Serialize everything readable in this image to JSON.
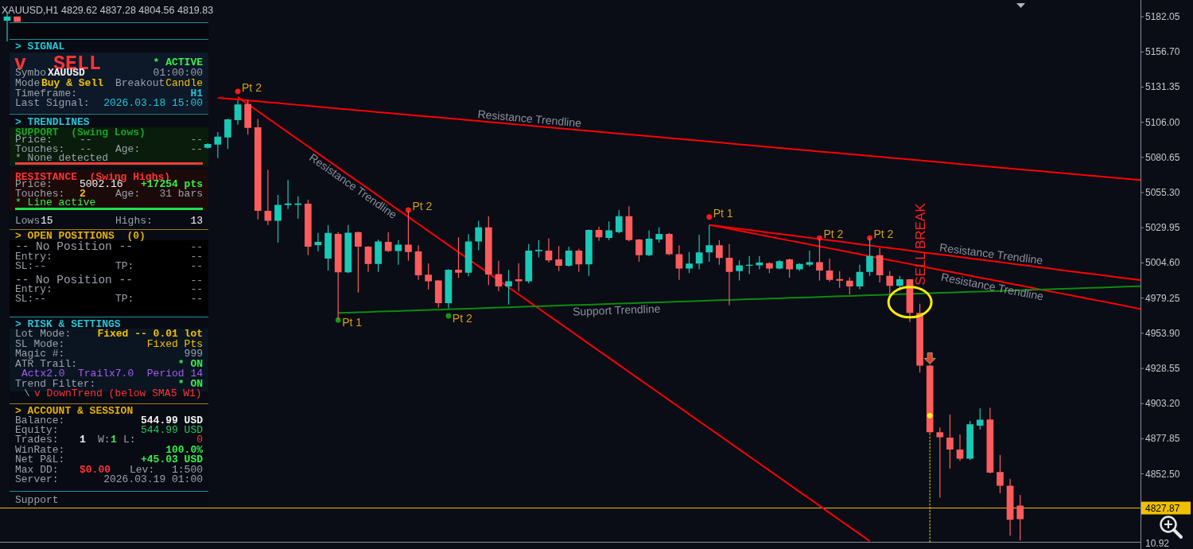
{
  "chart_data": [
    {
      "type": "candlestick",
      "title": "XAUUSD,H1 4829.62 4837.28 4804.56 4819.83",
      "categories": [
        null,
        null,
        null,
        null,
        null,
        null,
        null,
        null,
        null,
        null,
        null,
        null,
        null,
        null,
        null,
        null,
        null,
        null,
        null,
        null,
        null,
        null,
        null,
        null,
        null,
        null,
        null,
        null,
        null,
        null,
        null,
        null,
        null,
        null,
        null,
        null,
        null,
        null,
        null,
        null,
        null,
        null,
        null,
        null,
        null,
        null,
        null,
        null,
        null,
        null,
        null,
        null,
        null,
        null,
        null,
        null,
        null,
        null,
        null,
        null,
        null,
        null,
        null,
        null,
        null,
        null,
        null,
        null,
        null,
        null,
        null,
        null,
        null,
        null,
        null,
        null,
        null,
        null,
        null,
        null,
        null,
        null,
        null,
        null,
        null,
        null,
        null,
        null,
        null,
        null,
        null,
        null,
        null,
        null,
        null,
        null,
        null,
        null,
        null,
        null,
        null,
        null,
        null,
        null,
        null,
        null,
        null,
        null,
        null,
        null,
        null,
        null,
        null,
        null
      ],
      "ohlc": [
        [
          5179.2,
          5185.5,
          5164.3,
          5182.2
        ],
        [
          5182.2,
          5182.2,
          5178.4,
          5178.4
        ],
        null,
        null,
        null,
        null,
        null,
        null,
        null,
        null,
        null,
        null,
        null,
        null,
        null,
        null,
        null,
        null,
        null,
        null,
        [
          5087.6,
          5090.8,
          5087.0,
          5090.3
        ],
        [
          5089.9,
          5098.9,
          5080.3,
          5095.6
        ],
        [
          5095.1,
          5108.6,
          5086.7,
          5108.1
        ],
        [
          5107.5,
          5121.8,
          5104.2,
          5118.9
        ],
        [
          5119.2,
          5121.8,
          5097.0,
          5101.9
        ],
        [
          5102.3,
          5108.4,
          5036.0,
          5042.1
        ],
        [
          5042.1,
          5071.7,
          5032.0,
          5035.0
        ],
        [
          5035.0,
          5053.6,
          5019.2,
          5046.5
        ],
        [
          5046.3,
          5064.5,
          5043.4,
          5047.5
        ],
        [
          5046.5,
          5052.6,
          5036.4,
          5047.5
        ],
        [
          5047.3,
          5050.1,
          5010.2,
          5016.3
        ],
        [
          5017.3,
          5026.2,
          5012.9,
          5019.7
        ],
        [
          5007.7,
          5031.6,
          4999.1,
          5026.2
        ],
        [
          5025.5,
          5026.8,
          4963.7,
          4997.8
        ],
        [
          4997.8,
          5031.9,
          4997.2,
          5026.4
        ],
        [
          5026.8,
          5027.2,
          4983.2,
          5016.3
        ],
        [
          5016.3,
          5016.7,
          4998.1,
          5003.9
        ],
        [
          5003.9,
          5021.5,
          4998.1,
          5020.1
        ],
        [
          5019.7,
          5026.8,
          5012.5,
          5013.2
        ],
        [
          5013.2,
          5021.1,
          5003.3,
          5017.8
        ],
        [
          5017.8,
          5042.1,
          5006.2,
          5012.5
        ],
        [
          5012.9,
          5017.3,
          4992.4,
          4995.7
        ],
        [
          4996.1,
          5004.3,
          4985.3,
          4991.4
        ],
        [
          4992.0,
          4992.4,
          4972.3,
          4975.6
        ],
        [
          4975.6,
          5000.0,
          4971.8,
          4999.7
        ],
        [
          4999.7,
          5023.0,
          4993.7,
          4997.6
        ],
        [
          4997.6,
          5025.3,
          4994.9,
          5020.1
        ],
        [
          5020.1,
          5034.9,
          5013.8,
          5030.3
        ],
        [
          5030.3,
          5038.3,
          4988.6,
          4996.2
        ],
        [
          4996.6,
          5006.2,
          4984.2,
          4987.6
        ],
        [
          4987.6,
          4999.5,
          4974.6,
          4991.4
        ],
        [
          4992.8,
          5004.4,
          4984.2,
          4991.4
        ],
        [
          4991.4,
          5018.2,
          4989.9,
          5013.4
        ],
        [
          5013.0,
          5021.1,
          5008.6,
          5014.0
        ],
        [
          5013.4,
          5022.4,
          5004.9,
          5006.4
        ],
        [
          5007.1,
          5016.7,
          4998.7,
          5002.5
        ],
        [
          5002.5,
          5016.3,
          5001.9,
          5013.4
        ],
        [
          5013.4,
          5014.8,
          4998.1,
          5003.5
        ],
        [
          5003.5,
          5028.6,
          4995.3,
          5028.4
        ],
        [
          5028.4,
          5030.7,
          5020.5,
          5023.0
        ],
        [
          5022.6,
          5034.5,
          5021.1,
          5028.1
        ],
        [
          5026.8,
          5042.7,
          5025.9,
          5038.3
        ],
        [
          5038.3,
          5045.4,
          5020.1,
          5021.1
        ],
        [
          5021.5,
          5021.8,
          5005.4,
          5010.2
        ],
        [
          5010.2,
          5028.1,
          5009.4,
          5022.0
        ],
        [
          5021.5,
          5030.3,
          5019.2,
          5025.5
        ],
        [
          5025.5,
          5026.2,
          5010.2,
          5010.9
        ],
        [
          5010.9,
          5017.3,
          4992.4,
          5000.6
        ],
        [
          5000.6,
          5012.5,
          4997.2,
          5004.2
        ],
        [
          5004.2,
          5024.9,
          5000.0,
          5012.1
        ],
        [
          5012.1,
          5032.0,
          5005.4,
          5017.3
        ],
        [
          5017.3,
          5021.1,
          5003.3,
          5008.1
        ],
        [
          5008.3,
          5018.2,
          4974.2,
          4998.1
        ],
        [
          4998.7,
          5006.4,
          4992.0,
          5002.9
        ],
        [
          5002.5,
          5009.6,
          4996.6,
          5003.3
        ],
        [
          5002.9,
          5009.6,
          5000.0,
          5004.8
        ],
        [
          5004.4,
          5005.2,
          4997.2,
          5000.6
        ],
        [
          5000.6,
          5006.7,
          5000.0,
          5005.8
        ],
        [
          5007.1,
          5007.7,
          4993.9,
          5000.0
        ],
        [
          5000.0,
          5004.4,
          4998.7,
          5003.9
        ],
        [
          5003.3,
          5013.4,
          5002.0,
          5005.2
        ],
        [
          5005.2,
          5022.0,
          4991.8,
          4999.1
        ],
        [
          4999.1,
          5007.7,
          4991.1,
          4992.4
        ],
        [
          4993.0,
          4998.7,
          4986.7,
          4991.8
        ],
        [
          4991.8,
          4994.3,
          4981.9,
          4987.6
        ],
        [
          4987.6,
          5003.3,
          4985.7,
          4998.1
        ],
        [
          4998.1,
          5022.4,
          4995.3,
          5009.6
        ],
        [
          5010.2,
          5015.3,
          4990.5,
          4995.6
        ],
        [
          4995.3,
          4998.7,
          4981.9,
          4988.0
        ],
        [
          4988.0,
          4995.3,
          4985.7,
          4992.8
        ],
        [
          4992.8,
          4993.0,
          4962.0,
          4968.5
        ],
        [
          4968.5,
          4975.2,
          4925.5,
          4930.6
        ],
        [
          4930.6,
          4931.2,
          4882.0,
          4882.5
        ],
        [
          4882.5,
          4885.9,
          4835.3,
          4879.0
        ],
        [
          4878.6,
          4895.3,
          4856.3,
          4870.1
        ],
        [
          4870.1,
          4881.0,
          4861.8,
          4863.4
        ],
        [
          4863.4,
          4890.7,
          4862.4,
          4888.2
        ],
        [
          4887.3,
          4899.7,
          4884.4,
          4891.5
        ],
        [
          4891.7,
          4900.1,
          4852.8,
          4853.4
        ],
        [
          4853.8,
          4866.2,
          4838.5,
          4843.9
        ],
        [
          4843.9,
          4849.0,
          4807.9,
          4819.4
        ],
        [
          4829.62,
          4837.28,
          4804.56,
          4819.83
        ],
        null,
        null,
        null,
        null,
        null,
        null,
        null,
        null,
        null,
        null,
        null,
        null
      ],
      "colors": [
        "#19c9b5",
        "#fd5c5c",
        null,
        null,
        null,
        null,
        null,
        null,
        null,
        null,
        null,
        null,
        null,
        null,
        null,
        null,
        null,
        null,
        null,
        null,
        "#19c9b5",
        "#19c9b5",
        "#19c9b5",
        "#19c9b5",
        "#fd5c5c",
        "#fd5c5c",
        "#fd5c5c",
        "#19c9b5",
        "#19c9b5",
        "#19c9b5",
        "#fd5c5c",
        "#19c9b5",
        "#19c9b5",
        "#fd5c5c",
        "#19c9b5",
        "#fd5c5c",
        "#fd5c5c",
        "#19c9b5",
        "#fd5c5c",
        "#19c9b5",
        "#fd5c5c",
        "#fd5c5c",
        "#fd5c5c",
        "#fd5c5c",
        "#19c9b5",
        "#fd5c5c",
        "#19c9b5",
        "#19c9b5",
        "#fd5c5c",
        "#fd5c5c",
        "#19c9b5",
        "#fd5c5c",
        "#19c9b5",
        "#19c9b5",
        "#fd5c5c",
        "#fd5c5c",
        "#19c9b5",
        "#fd5c5c",
        "#19c9b5",
        "#fd5c5c",
        "#19c9b5",
        "#19c9b5",
        "#fd5c5c",
        "#fd5c5c",
        "#19c9b5",
        "#19c9b5",
        "#fd5c5c",
        "#fd5c5c",
        "#19c9b5",
        "#19c9b5",
        "#19c9b5",
        "#fd5c5c",
        "#fd5c5c",
        "#19c9b5",
        "#19c9b5",
        "#19c9b5",
        "#fd5c5c",
        "#19c9b5",
        "#fd5c5c",
        "#19c9b5",
        "#19c9b5",
        "#fd5c5c",
        "#fd5c5c",
        "#fd5c5c",
        "#fd5c5c",
        "#19c9b5",
        "#19c9b5",
        "#fd5c5c",
        "#fd5c5c",
        "#19c9b5",
        "#fd5c5c",
        "#fd5c5c",
        "#fd5c5c",
        "#fd5c5c",
        "#fd5c5c",
        "#fd5c5c",
        "#19c9b5",
        "#19c9b5",
        "#fd5c5c",
        "#fd5c5c",
        "#fd5c5c",
        "#fd5c5c",
        null,
        null,
        null,
        null,
        null,
        null,
        null,
        null,
        null,
        null,
        null,
        null
      ],
      "ylim": [
        4803.5,
        5193.0
      ],
      "yticks": [
        5182.05,
        {
          "value": 5156.7,
          "label": "5156.70"
        },
        5131.35,
        {
          "value": 5106,
          "label": "5106.00"
        },
        5080.65,
        {
          "value": 5055.3,
          "label": "5055.30"
        },
        5029.95,
        {
          "value": 5004.6,
          "label": "5004.60"
        },
        4979.25,
        {
          "value": 4953.9,
          "label": "4953.90"
        },
        4928.55,
        {
          "value": 4903.2,
          "label": "4903.20"
        },
        4877.85,
        {
          "value": 4852.5,
          "label": "4852.50"
        }
      ],
      "ref_lines": [
        {
          "axis": "y",
          "value": 4827.87,
          "label": "4827.87",
          "color": "#f0c000"
        }
      ],
      "series": [
        {
          "type": "line",
          "name": "Resistance Trendline",
          "color": "#ff0000",
          "values": [
            null,
            null,
            null,
            null,
            null,
            null,
            null,
            null,
            null,
            null,
            null,
            null,
            null,
            null,
            null,
            null,
            null,
            null,
            null,
            null,
            null,
            5123.6,
            5123.0,
            5122.4,
            5121.7,
            5121.1,
            5120.4,
            5119.8,
            5119.1,
            5118.5,
            5117.8,
            5117.2,
            5116.6,
            5115.9,
            5115.3,
            5114.6,
            5114.0,
            5113.3,
            5112.7,
            5112.0,
            5111.4,
            5110.7,
            5110.1,
            5109.5,
            5108.8,
            5108.2,
            5107.5,
            5106.9,
            5106.2,
            5105.6,
            5104.9,
            5104.3,
            5103.7,
            5103.0,
            5102.4,
            5101.7,
            5101.1,
            5100.4,
            5099.8,
            5099.1,
            5098.5,
            5097.8,
            5097.2,
            5096.6,
            5095.9,
            5095.3,
            5094.6,
            5094.0,
            5093.3,
            5092.7,
            5092.0,
            5091.4,
            5090.8,
            5090.1,
            5089.5,
            5088.8,
            5088.2,
            5087.5,
            5086.9,
            5086.2,
            5085.6,
            5084.9,
            5084.3,
            5083.7,
            5083.0,
            5082.4,
            5081.7,
            5081.1,
            5080.4,
            5079.8,
            5079.1,
            5078.5,
            5077.9,
            5077.2,
            5076.6,
            5075.9,
            5075.3,
            5074.6,
            5074.0,
            5073.3,
            5072.7,
            5072.0,
            5071.4,
            5070.8,
            5070.1,
            5069.5,
            5068.8,
            5068.2,
            5067.5,
            5066.9,
            5066.2,
            5065.6,
            5065.0,
            5064.3
          ]
        },
        {
          "type": "line",
          "name": "Resistance Trendline",
          "color": "#ff0000",
          "values": [
            null,
            null,
            null,
            null,
            null,
            null,
            null,
            null,
            null,
            null,
            null,
            null,
            null,
            null,
            null,
            null,
            null,
            null,
            null,
            null,
            null,
            null,
            null,
            5124.1,
            null,
            5114.0,
            5108.9,
            5103.8,
            5098.7,
            5093.6,
            5088.6,
            5083.5,
            5078.4,
            5073.3,
            5068.2,
            5063.2,
            5058.1,
            5053.0,
            5047.9,
            5042.8,
            5037.8,
            5032.7,
            5027.6,
            5022.5,
            5017.4,
            5012.4,
            null,
            5002.2,
            null,
            null,
            4987.0,
            4981.9,
            4976.8,
            4971.7,
            4966.6,
            4961.6,
            4956.5,
            4951.4,
            4946.3,
            4941.2,
            4936.2,
            4931.1,
            4926.0,
            4920.9,
            4915.8,
            4910.8,
            4905.7,
            4900.6,
            4895.5,
            4890.4,
            4885.4,
            4880.3,
            4875.2,
            4870.1,
            4865.0,
            4860.0,
            4854.9,
            4849.8,
            4844.7,
            4839.6,
            4834.6,
            4829.5,
            4824.4,
            4819.3,
            4814.2,
            4809.2,
            4804.1,
            null,
            null,
            null,
            null,
            null,
            null,
            null,
            null,
            null,
            null,
            null,
            null,
            null,
            null,
            null,
            null,
            null,
            null,
            null,
            null,
            null,
            null,
            null,
            null,
            null,
            null,
            null
          ]
        },
        {
          "type": "line",
          "name": "Resistance Trendline",
          "color": "#ff0000",
          "values": [
            null,
            null,
            null,
            null,
            null,
            null,
            null,
            null,
            null,
            null,
            null,
            null,
            null,
            null,
            null,
            null,
            null,
            null,
            null,
            null,
            null,
            null,
            null,
            null,
            null,
            null,
            null,
            null,
            null,
            null,
            null,
            null,
            null,
            null,
            null,
            null,
            null,
            null,
            null,
            null,
            null,
            null,
            null,
            null,
            null,
            null,
            null,
            null,
            null,
            null,
            null,
            null,
            null,
            null,
            null,
            null,
            null,
            null,
            null,
            null,
            null,
            null,
            null,
            null,
            null,
            null,
            null,
            null,
            null,
            null,
            5032.0,
            5031.1,
            5030.1,
            5029.2,
            5028.3,
            5027.4,
            5026.4,
            5025.5,
            5024.6,
            5023.7,
            5022.7,
            5021.8,
            5020.9,
            5020.0,
            5019.0,
            5018.1,
            5017.2,
            5016.2,
            5015.3,
            5014.4,
            5013.5,
            5012.5,
            5011.6,
            5010.7,
            5009.8,
            5008.8,
            5007.9,
            5007.0,
            5006.1,
            5005.1,
            5004.2,
            5003.3,
            5002.4,
            5001.4,
            5000.5,
            4999.6,
            4998.6,
            4997.7,
            4996.8,
            4995.9,
            4994.9,
            4994.0,
            4993.1,
            4992.2
          ]
        },
        {
          "type": "line",
          "name": "Resistance Trendline",
          "color": "#ff0000",
          "values": [
            null,
            null,
            null,
            null,
            null,
            null,
            null,
            null,
            null,
            null,
            null,
            null,
            null,
            null,
            null,
            null,
            null,
            null,
            null,
            null,
            null,
            null,
            null,
            null,
            null,
            null,
            null,
            null,
            null,
            null,
            null,
            null,
            null,
            null,
            null,
            null,
            null,
            null,
            null,
            null,
            null,
            null,
            null,
            null,
            null,
            null,
            null,
            null,
            null,
            null,
            null,
            null,
            null,
            null,
            null,
            null,
            null,
            null,
            null,
            null,
            null,
            null,
            null,
            null,
            null,
            null,
            null,
            null,
            null,
            null,
            5032.0,
            5030.6,
            5029.2,
            5027.8,
            5026.4,
            5025.0,
            5023.5,
            5022.1,
            5020.7,
            5019.3,
            5017.9,
            5016.5,
            5015.1,
            5013.7,
            5012.3,
            5010.9,
            null,
            null,
            5006.6,
            5005.2,
            5003.8,
            5002.4,
            5001.0,
            4999.6,
            4998.2,
            4996.8,
            4995.4,
            4994.0,
            4992.6,
            4991.2,
            4989.7,
            4988.3,
            4986.9,
            4985.5,
            4984.1,
            4982.7,
            4981.3,
            4979.9,
            4978.5,
            4977.1,
            4975.7,
            4974.3,
            4972.8,
            4971.4
          ]
        },
        {
          "type": "line",
          "name": "Support Trendline",
          "color": "#0c8c0c",
          "values": [
            null,
            null,
            null,
            null,
            null,
            null,
            null,
            null,
            null,
            null,
            null,
            null,
            null,
            null,
            null,
            null,
            null,
            null,
            null,
            null,
            null,
            null,
            null,
            null,
            null,
            null,
            null,
            null,
            null,
            null,
            null,
            null,
            null,
            4968.5,
            4968.7,
            4969.0,
            4969.2,
            4969.5,
            4969.7,
            4969.9,
            4970.2,
            4970.4,
            4970.7,
            4970.9,
            4971.2,
            4971.4,
            4971.6,
            4971.9,
            4972.1,
            4972.4,
            4972.6,
            4972.8,
            4973.1,
            4973.3,
            4973.6,
            4973.8,
            4974.1,
            4974.3,
            4974.5,
            4974.8,
            4975.0,
            4975.3,
            4975.5,
            4975.7,
            4976.0,
            4976.2,
            4976.5,
            4976.7,
            4976.9,
            4977.2,
            4977.4,
            4977.7,
            4977.9,
            4978.2,
            4978.4,
            4978.6,
            4978.9,
            4979.1,
            4979.4,
            4979.6,
            4979.8,
            4980.1,
            4980.3,
            4980.6,
            4980.8,
            4981.1,
            4981.3,
            4981.5,
            4981.8,
            4982.0,
            null,
            4982.5,
            4982.7,
            4983.0,
            4983.2,
            4983.5,
            4983.7,
            4983.9,
            4984.2,
            4984.4,
            4984.7,
            4984.9,
            4985.2,
            4985.4,
            4985.6,
            4985.9,
            4986.1,
            4986.4,
            4986.6,
            4986.8,
            4987.1,
            4987.3,
            4987.6,
            4987.8
          ]
        },
        {
          "type": "scatter",
          "color": "#ff1a1a",
          "marker": "circle",
          "values": [
            null,
            null,
            null,
            null,
            null,
            null,
            null,
            null,
            null,
            null,
            null,
            null,
            null,
            null,
            null,
            null,
            null,
            null,
            null,
            null,
            null,
            null,
            null,
            5128.2,
            null,
            null,
            null,
            null,
            null,
            null,
            null,
            null,
            null,
            null,
            null,
            null,
            null,
            null,
            null,
            null,
            5042.7,
            null,
            null,
            null,
            null,
            null,
            null,
            null,
            null,
            null,
            null,
            null,
            null,
            null,
            null,
            null,
            null,
            null,
            null,
            null,
            null,
            null,
            null,
            null,
            null,
            null,
            null,
            null,
            null,
            null,
            5037.7,
            null,
            null,
            null,
            null,
            null,
            null,
            null,
            null,
            null,
            null,
            5022.6,
            null,
            null,
            null,
            null,
            5022.6,
            null,
            null,
            null,
            null,
            null,
            null,
            null,
            null,
            null,
            null,
            null,
            null,
            null,
            null,
            null,
            null,
            null,
            null,
            null,
            null,
            null,
            null,
            null,
            null,
            null,
            null,
            null
          ],
          "value_labels": [
            null,
            null,
            null,
            null,
            null,
            null,
            null,
            null,
            null,
            null,
            null,
            null,
            null,
            null,
            null,
            null,
            null,
            null,
            null,
            null,
            null,
            null,
            null,
            "Pt 2",
            null,
            null,
            null,
            null,
            null,
            null,
            null,
            null,
            null,
            null,
            null,
            null,
            null,
            null,
            null,
            null,
            "Pt 2",
            null,
            null,
            null,
            null,
            null,
            null,
            null,
            null,
            null,
            null,
            null,
            null,
            null,
            null,
            null,
            null,
            null,
            null,
            null,
            null,
            null,
            null,
            null,
            null,
            null,
            null,
            null,
            null,
            null,
            "Pt 1",
            null,
            null,
            null,
            null,
            null,
            null,
            null,
            null,
            null,
            null,
            "Pt 2",
            null,
            null,
            null,
            null,
            "Pt 2",
            null,
            null,
            null,
            null,
            null,
            null,
            null,
            null,
            null,
            null,
            null,
            null,
            null,
            null,
            null,
            null,
            null,
            null,
            null,
            null,
            null,
            null,
            null,
            null,
            null,
            null,
            null
          ]
        },
        {
          "type": "scatter",
          "color": "#0a9a0a",
          "marker": "circle",
          "values": [
            null,
            null,
            null,
            null,
            null,
            null,
            null,
            null,
            null,
            null,
            null,
            null,
            null,
            null,
            null,
            null,
            null,
            null,
            null,
            null,
            null,
            null,
            null,
            null,
            null,
            null,
            null,
            null,
            null,
            null,
            null,
            null,
            null,
            4963.4,
            null,
            null,
            null,
            null,
            null,
            null,
            null,
            null,
            null,
            null,
            4966.4,
            null,
            null,
            null,
            null,
            null,
            null,
            null,
            null,
            null,
            null,
            null,
            null,
            null,
            null,
            null,
            null,
            null,
            null,
            null,
            null,
            null,
            null,
            null,
            null,
            null,
            null,
            null,
            null,
            null,
            null,
            null,
            null,
            null,
            null,
            null,
            null,
            null,
            null,
            null,
            null,
            null,
            null,
            null,
            null,
            null,
            null,
            null,
            null,
            null,
            null,
            null,
            null,
            null,
            null,
            null,
            null,
            null,
            null,
            null,
            null,
            null,
            null,
            null,
            null,
            null,
            null,
            null,
            null,
            null
          ],
          "value_labels": [
            null,
            null,
            null,
            null,
            null,
            null,
            null,
            null,
            null,
            null,
            null,
            null,
            null,
            null,
            null,
            null,
            null,
            null,
            null,
            null,
            null,
            null,
            null,
            null,
            null,
            null,
            null,
            null,
            null,
            null,
            null,
            null,
            null,
            "Pt 1",
            null,
            null,
            null,
            null,
            null,
            null,
            null,
            null,
            null,
            null,
            "Pt 2",
            null,
            null,
            null,
            null,
            null,
            null,
            null,
            null,
            null,
            null,
            null,
            null,
            null,
            null,
            null,
            null,
            null,
            null,
            null,
            null,
            null,
            null,
            null,
            null,
            null,
            null,
            null,
            null,
            null,
            null,
            null,
            null,
            null,
            null,
            null,
            null,
            null,
            null,
            null,
            null,
            null,
            null,
            null,
            null,
            null,
            null,
            null,
            null,
            null,
            null,
            null,
            null,
            null,
            null,
            null,
            null,
            null,
            null,
            null,
            null,
            null,
            null,
            null,
            null,
            null,
            null,
            null,
            null,
            null
          ]
        },
        {
          "type": "scatter",
          "color": "#ffff00",
          "marker": "circle",
          "line_style": "dotted",
          "values": [
            null,
            null,
            null,
            null,
            null,
            null,
            null,
            null,
            null,
            null,
            null,
            null,
            null,
            null,
            null,
            null,
            null,
            null,
            null,
            null,
            null,
            null,
            null,
            null,
            null,
            null,
            null,
            null,
            null,
            null,
            null,
            null,
            null,
            null,
            null,
            null,
            null,
            null,
            null,
            null,
            null,
            null,
            null,
            null,
            null,
            null,
            null,
            null,
            null,
            null,
            null,
            null,
            null,
            null,
            null,
            null,
            null,
            null,
            null,
            null,
            null,
            null,
            null,
            null,
            null,
            null,
            null,
            null,
            null,
            null,
            null,
            null,
            null,
            null,
            null,
            null,
            null,
            null,
            null,
            null,
            null,
            null,
            null,
            null,
            null,
            null,
            null,
            null,
            null,
            null,
            null,
            null,
            4894.5,
            null,
            null,
            null,
            null,
            null,
            null,
            null,
            null,
            null,
            null,
            null,
            null,
            null,
            null,
            null,
            null,
            null,
            null,
            null,
            null,
            null
          ],
          "errors": [
            null,
            null,
            null,
            null,
            null,
            null,
            null,
            null,
            null,
            null,
            null,
            null,
            null,
            null,
            null,
            null,
            null,
            null,
            null,
            null,
            null,
            null,
            null,
            null,
            null,
            null,
            null,
            null,
            null,
            null,
            null,
            null,
            null,
            null,
            null,
            null,
            null,
            null,
            null,
            null,
            null,
            null,
            null,
            null,
            null,
            null,
            null,
            null,
            null,
            null,
            null,
            null,
            null,
            null,
            null,
            null,
            null,
            null,
            null,
            null,
            null,
            null,
            null,
            null,
            null,
            null,
            null,
            null,
            null,
            null,
            null,
            null,
            null,
            null,
            null,
            null,
            null,
            null,
            null,
            null,
            null,
            null,
            null,
            null,
            null,
            null,
            null,
            null,
            null,
            null,
            null,
            null,
            [
              4803.5,
              4894.5
            ],
            null,
            null,
            null,
            null,
            null,
            null,
            null,
            null,
            null,
            null,
            null,
            null,
            null,
            null,
            null,
            null,
            null,
            null,
            null,
            null,
            null
          ]
        }
      ],
      "annotations": [
        "SELL BREAK"
      ]
    },
    {
      "type": "other",
      "annotations": [
        "> SIGNAL",
        "v",
        "SELL",
        "* ACTIVE",
        "Symbo",
        "XAUUSD",
        "01:00:00",
        "Mode",
        "Buy & Sell",
        "Breakout",
        "Candle",
        "Timeframe:",
        "H1",
        "Last Signal:",
        "2026.03.18 15:00",
        "> TRENDLINES",
        "SUPPORT  (Swing Lows)",
        "Price:",
        "--",
        "--",
        "Touches:",
        "--",
        "Age:",
        "--",
        "* None detected",
        "RESISTANCE  (Swing Highs)",
        "Price:",
        "5002.16",
        "+17254 pts",
        "Touches:",
        "2",
        "Age:",
        "31 bars",
        "* Line active",
        "Lows",
        "15",
        "Highs:",
        "13",
        "> OPEN POSITIONS  (0)",
        "-- No Position --",
        "--",
        "Entry:",
        "--",
        "SL:--",
        "TP:",
        "--",
        "-- No Position --",
        "--",
        "Entry:",
        "--",
        "SL:--",
        "TP:",
        "--",
        "> RISK & SETTINGS",
        "Lot Mode:",
        "Fixed -- 0.01 lot",
        "SL Mode:",
        "Fixed Pts",
        "Magic #:",
        "999",
        "ATR Trail:",
        "* ON",
        "Actx2.0",
        "Trailx7.0",
        "Period 14",
        "Trend Filter:",
        "* ON",
        "\\",
        "v DownTrend (below SMA5 W1)",
        "> ACCOUNT & SESSION",
        "Balance:",
        "544.99 USD",
        "Equity:",
        "544.99 USD",
        "Trades:",
        "1",
        "W:",
        "1",
        "L:",
        "0",
        "WinRate:",
        "100.0%",
        "Net P&L:",
        "+45.03 USD",
        "Max DD:",
        "$0.00",
        "Lev:",
        "1:500",
        "Server:",
        "2026.03.19 01:00",
        "Support"
      ]
    },
    {
      "type": "other",
      "annotations": [
        "10.92"
      ]
    }
  ]
}
